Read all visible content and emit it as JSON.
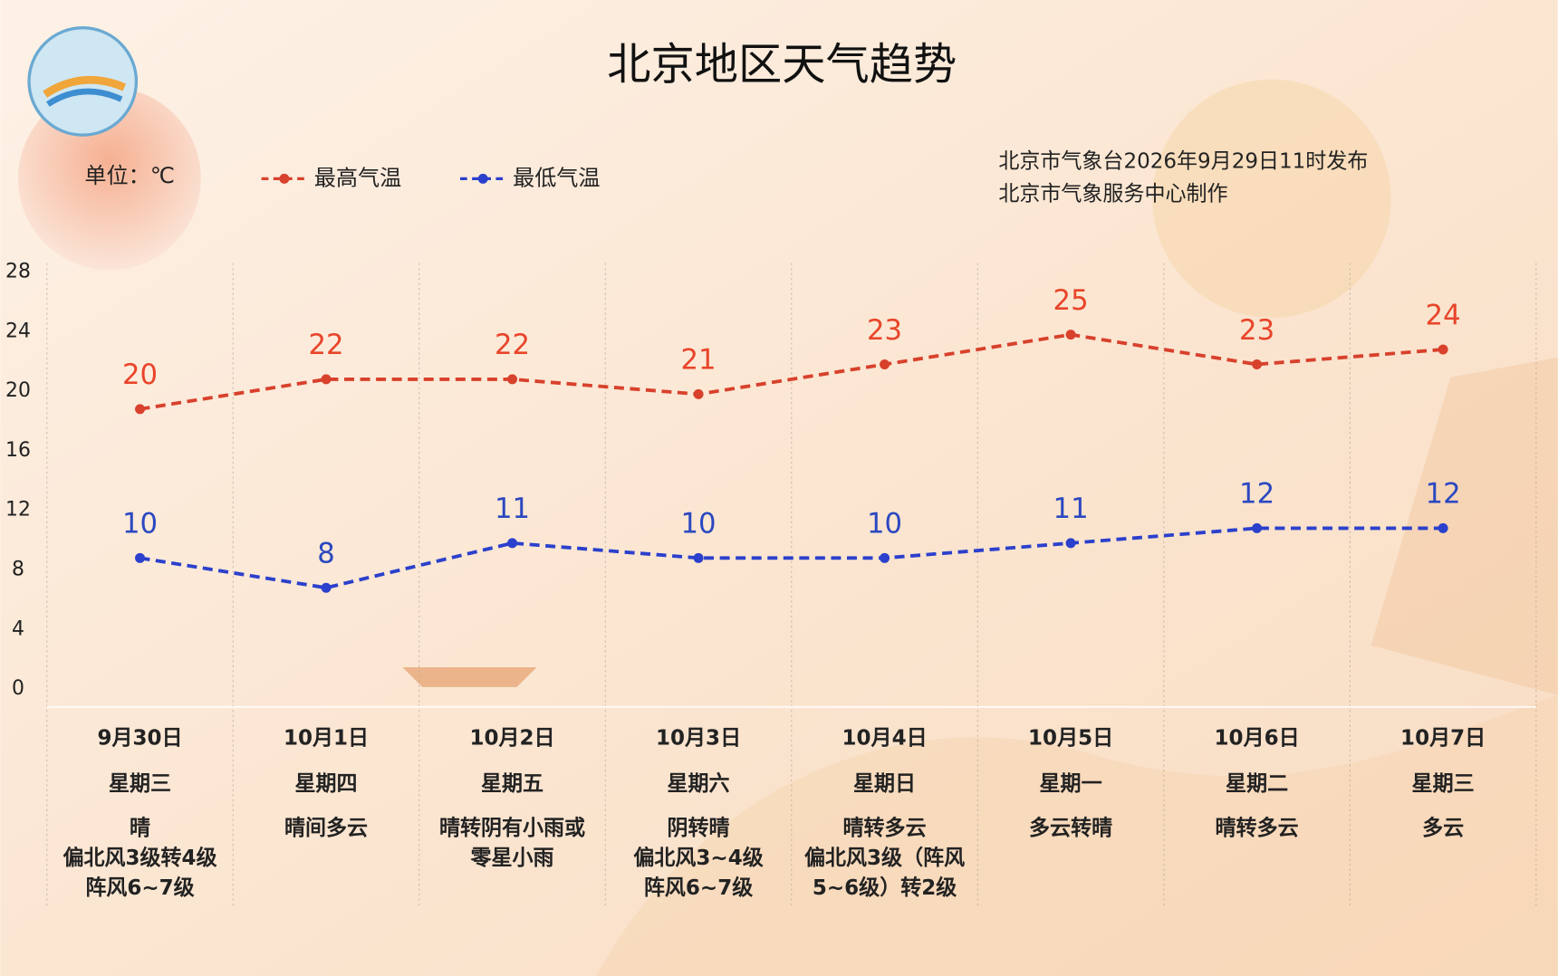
{
  "chart_data": {
    "type": "line",
    "title": "北京地区天气趋势",
    "unit_label": "单位：℃",
    "notes": [
      "北京市气象台2026年9月29日11时发布",
      "北京市气象服务中心制作"
    ],
    "categories": [
      "9月30日",
      "10月1日",
      "10月2日",
      "10月3日",
      "10月4日",
      "10月5日",
      "10月6日",
      "10月7日"
    ],
    "weekdays": [
      "星期三",
      "星期四",
      "星期五",
      "星期六",
      "星期日",
      "星期一",
      "星期二",
      "星期三"
    ],
    "weather": [
      [
        "晴",
        "偏北风3级转4级",
        "阵风6~7级"
      ],
      [
        "晴间多云"
      ],
      [
        "晴转阴有小雨或",
        "零星小雨"
      ],
      [
        "阴转晴",
        "偏北风3~4级",
        "阵风6~7级"
      ],
      [
        "晴转多云",
        "偏北风3级（阵风",
        "5~6级）转2级"
      ],
      [
        "多云转晴"
      ],
      [
        "晴转多云"
      ],
      [
        "多云"
      ]
    ],
    "series": [
      {
        "name": "最高气温",
        "color": "#d8412c",
        "label_color": "#e8452a",
        "values": [
          20,
          22,
          22,
          21,
          23,
          25,
          23,
          24
        ]
      },
      {
        "name": "最低气温",
        "color": "#2b40cc",
        "label_color": "#2b48c0",
        "values": [
          10,
          8,
          11,
          10,
          10,
          11,
          12,
          12
        ]
      }
    ],
    "ylim": [
      0,
      30
    ],
    "yticks": [
      0,
      4,
      8,
      12,
      16,
      20,
      24,
      28
    ],
    "grid": true
  }
}
